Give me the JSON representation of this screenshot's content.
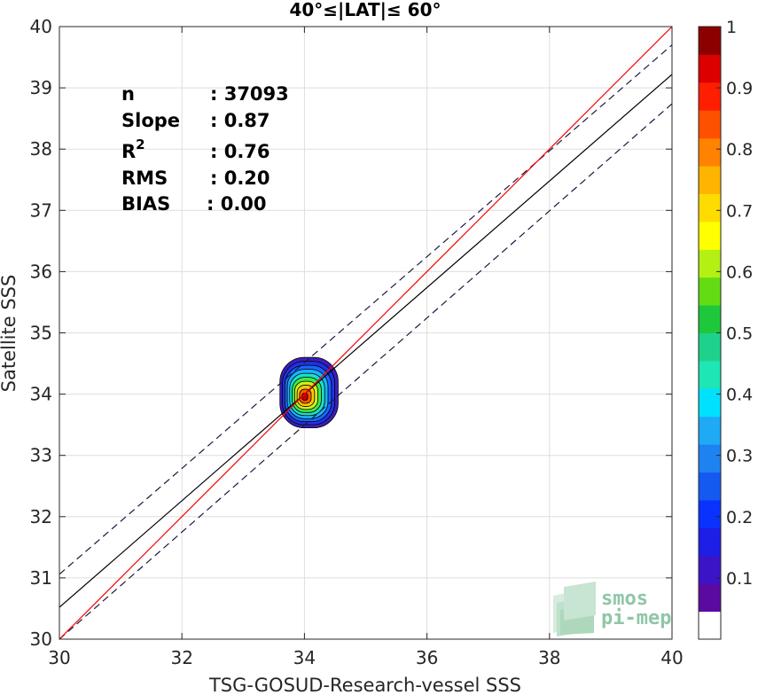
{
  "chart_data": {
    "type": "scatter",
    "title": "40°≤|LAT|≤ 60°",
    "xlabel": "TSG-GOSUD-Research-vessel SSS",
    "ylabel": "Satellite SSS",
    "xlim": [
      30,
      40
    ],
    "ylim": [
      30,
      40
    ],
    "xticks": [
      "30",
      "32",
      "34",
      "36",
      "38",
      "40"
    ],
    "yticks": [
      "30",
      "31",
      "32",
      "33",
      "34",
      "35",
      "36",
      "37",
      "38",
      "39",
      "40"
    ],
    "grid": true,
    "stats": {
      "n_label": "n",
      "n_value": ": 37093",
      "slope_label": "Slope",
      "slope_value": ": 0.87",
      "r2_label": "R",
      "r2_sup": "2",
      "r2_value": ": 0.76",
      "rms_label": "RMS",
      "rms_value": ": 0.20",
      "bias_label": "BIAS",
      "bias_value": ": 0.00"
    },
    "lines": {
      "identity": {
        "x": [
          30,
          40
        ],
        "y": [
          30,
          40
        ],
        "color": "#ff0000"
      },
      "fit": {
        "x": [
          30,
          40
        ],
        "y": [
          30.52,
          39.22
        ],
        "color": "#000000"
      },
      "upper_bound": {
        "x": [
          30,
          40
        ],
        "y": [
          31.06,
          39.7
        ],
        "color": "#1a1a40",
        "style": "dashed"
      },
      "lower_bound": {
        "x": [
          30,
          40
        ],
        "y": [
          30.0,
          38.74
        ],
        "color": "#1a1a40",
        "style": "dashed"
      }
    },
    "density_contours": {
      "center": [
        34.0,
        33.95
      ],
      "levels": [
        0.05,
        0.15,
        0.25,
        0.35,
        0.45,
        0.55,
        0.65,
        0.75,
        0.85,
        0.95
      ],
      "colors": [
        "#3b1fb8",
        "#1f32e6",
        "#1966ff",
        "#19b2ff",
        "#19e0c8",
        "#3ee84b",
        "#ccf01a",
        "#ffc800",
        "#ff5a00",
        "#c80000"
      ],
      "outer_extent": {
        "xmin": 33.6,
        "xmax": 34.55,
        "ymin": 33.45,
        "ymax": 34.6
      }
    },
    "colorbar": {
      "range": [
        0,
        1
      ],
      "ticks": [
        "0.1",
        "0.2",
        "0.3",
        "0.4",
        "0.5",
        "0.6",
        "0.7",
        "0.8",
        "0.9",
        "1"
      ],
      "colors": [
        "#ffffff",
        "#5a0aa0",
        "#3c14c8",
        "#1e1ee6",
        "#0a32ff",
        "#145af0",
        "#1e82f0",
        "#1eaaf5",
        "#00e1ff",
        "#1ee6b4",
        "#1ed28c",
        "#1ec83c",
        "#64dc14",
        "#b4f014",
        "#ffff00",
        "#ffdc00",
        "#ffb400",
        "#ff8200",
        "#ff5000",
        "#ff1e00",
        "#dc0000",
        "#8c0000"
      ]
    },
    "logo": {
      "line1": "smos",
      "line2": "pi-mep"
    }
  }
}
